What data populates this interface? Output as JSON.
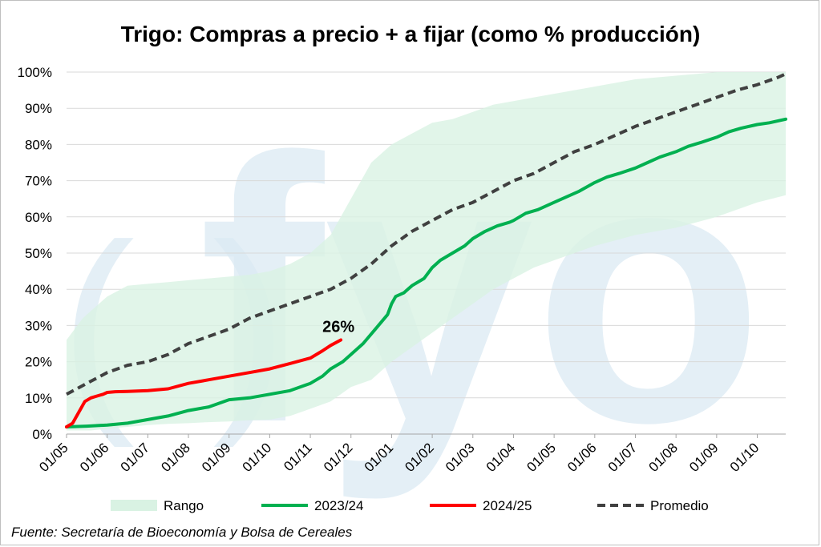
{
  "chart_data": {
    "type": "line",
    "title": "Trigo: Compras a precio + a fijar (como % producción)",
    "xlabel": "",
    "ylabel": "",
    "ylim": [
      0,
      100
    ],
    "y_ticks": [
      "0%",
      "10%",
      "20%",
      "30%",
      "40%",
      "50%",
      "60%",
      "70%",
      "80%",
      "90%",
      "100%"
    ],
    "x_range_months": [
      0,
      17.7
    ],
    "x_ticks": [
      "01/05",
      "01/06",
      "01/07",
      "01/08",
      "01/09",
      "01/10",
      "01/11",
      "01/12",
      "01/01",
      "01/02",
      "01/03",
      "01/04",
      "01/05",
      "01/06",
      "01/07",
      "01/08",
      "01/09",
      "01/10"
    ],
    "annotation": "26%",
    "legend": [
      "Rango",
      "2023/24",
      "2024/25",
      "Promedio"
    ],
    "legend_position": "bottom",
    "watermark": "fyo",
    "range": {
      "name": "Rango",
      "x": [
        0,
        0.2,
        0.4,
        0.6,
        1.0,
        1.5,
        2,
        2.5,
        3,
        3.5,
        4,
        4.5,
        5,
        5.5,
        6,
        6.5,
        7,
        7.5,
        8,
        8.5,
        9,
        9.5,
        10,
        10.5,
        11,
        11.5,
        12,
        13,
        14,
        15,
        16,
        17,
        17.7
      ],
      "lower": [
        1,
        1,
        1,
        1,
        1.5,
        2,
        2.5,
        2.8,
        3,
        3.3,
        3.5,
        3.8,
        4,
        5,
        7,
        9,
        13,
        15,
        20,
        24,
        28,
        32,
        36,
        40,
        43,
        46,
        48,
        52,
        55,
        57,
        60,
        64,
        66
      ],
      "upper": [
        26,
        29,
        32,
        34,
        38,
        41,
        41.5,
        42,
        42.5,
        43,
        43.5,
        44,
        45,
        47,
        50,
        55,
        65,
        75,
        80,
        83,
        86,
        87,
        89,
        91,
        92,
        93,
        94,
        96,
        98,
        99,
        100,
        100,
        100
      ]
    },
    "series": [
      {
        "name": "2023/24",
        "color": "#00b050",
        "x": [
          0,
          0.5,
          1,
          1.5,
          2,
          2.5,
          3,
          3.5,
          4,
          4.5,
          5,
          5.5,
          6,
          6.3,
          6.5,
          6.8,
          7,
          7.3,
          7.6,
          7.9,
          8.0,
          8.1,
          8.3,
          8.5,
          8.8,
          9,
          9.2,
          9.5,
          9.8,
          10,
          10.3,
          10.6,
          10.9,
          11,
          11.3,
          11.6,
          12,
          12.3,
          12.6,
          13,
          13.3,
          13.6,
          14,
          14.3,
          14.6,
          15,
          15.3,
          15.6,
          16,
          16.3,
          16.6,
          17,
          17.3,
          17.7
        ],
        "values": [
          2,
          2.2,
          2.5,
          3,
          4,
          5,
          6.5,
          7.5,
          9.5,
          10,
          11,
          12,
          14,
          16,
          18,
          20,
          22,
          25,
          29,
          33,
          36,
          38,
          39,
          41,
          43,
          46,
          48,
          50,
          52,
          54,
          56,
          57.5,
          58.5,
          59,
          61,
          62,
          64,
          65.5,
          67,
          69.5,
          71,
          72,
          73.5,
          75,
          76.5,
          78,
          79.5,
          80.5,
          82,
          83.5,
          84.5,
          85.5,
          86,
          87
        ]
      },
      {
        "name": "2024/25",
        "color": "#ff0000",
        "x": [
          0,
          0.15,
          0.3,
          0.45,
          0.6,
          0.75,
          0.9,
          1.0,
          1.2,
          1.5,
          2,
          2.5,
          3,
          3.5,
          4,
          4.5,
          5,
          5.5,
          6,
          6.3,
          6.5,
          6.75
        ],
        "values": [
          2,
          3,
          6,
          9,
          10,
          10.5,
          11,
          11.5,
          11.7,
          11.8,
          12,
          12.5,
          14,
          15,
          16,
          17,
          18,
          19.5,
          21,
          23,
          24.5,
          26
        ]
      },
      {
        "name": "Promedio",
        "color": "#404040",
        "x": [
          0,
          0.5,
          1,
          1.5,
          2,
          2.5,
          3,
          3.5,
          4,
          4.5,
          5,
          5.5,
          6,
          6.5,
          7,
          7.5,
          8,
          8.5,
          9,
          9.5,
          10,
          10.5,
          11,
          11.5,
          12,
          12.5,
          13,
          13.5,
          14,
          14.5,
          15,
          15.5,
          16,
          16.5,
          17,
          17.5,
          17.7
        ],
        "values": [
          11,
          14,
          17,
          19,
          20,
          22,
          25,
          27,
          29,
          32,
          34,
          36,
          38,
          40,
          43,
          47,
          52,
          56,
          59,
          62,
          64,
          67,
          70,
          72,
          75,
          78,
          80,
          82.5,
          85,
          87,
          89,
          91,
          93,
          95,
          96.5,
          98.5,
          99.5
        ]
      }
    ]
  },
  "colors": {
    "range_fill": "#d9f2e3",
    "watermark": "#dbe9f3",
    "grid": "#d9d9d9"
  },
  "footer": {
    "source": "Fuente: Secretaría de Bioeconomía y Bolsa de Cereales"
  }
}
